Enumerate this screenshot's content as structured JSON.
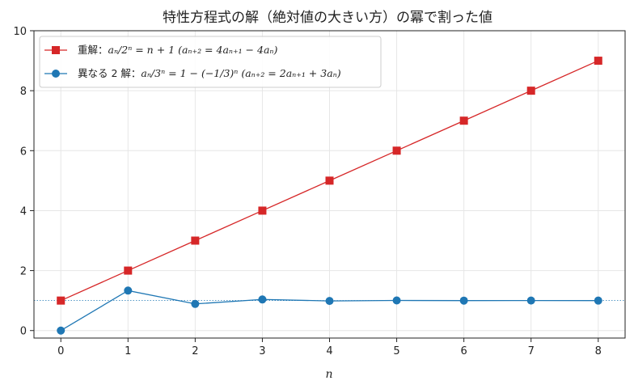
{
  "chart_data": {
    "type": "line",
    "title": "特性方程式の解（絶対値の大きい方）の冪で割った値",
    "xlabel": "n",
    "ylabel": "",
    "x": [
      0,
      1,
      2,
      3,
      4,
      5,
      6,
      7,
      8
    ],
    "xlim": [
      -0.4,
      8.4
    ],
    "ylim": [
      -0.25,
      10
    ],
    "xticks": [
      0,
      1,
      2,
      3,
      4,
      5,
      6,
      7,
      8
    ],
    "yticks": [
      0,
      2,
      4,
      6,
      8,
      10
    ],
    "grid": true,
    "legend_position": "top-left",
    "reference_line": {
      "y": 1,
      "style": "dotted",
      "color": "#1f77b4"
    },
    "series": [
      {
        "name": "重解：a_n/2^n = n+1 （a_{n+2} = 4a_{n+1} − 4a_n）",
        "legend_label": "重解：",
        "legend_math": "aₙ/2ⁿ = n + 1  (aₙ₊₂ = 4aₙ₊₁ − 4aₙ)",
        "color": "#d62728",
        "marker": "square",
        "values": [
          1,
          2,
          3,
          4,
          5,
          6,
          7,
          8,
          9
        ]
      },
      {
        "name": "異なる 2 解：a_n/3^n = 1 − (−1/3)^n （a_{n+2} = 2a_{n+1} + 3a_n）",
        "legend_label": "異なる 2 解：",
        "legend_math": "aₙ/3ⁿ = 1 − (−1/3)ⁿ  (aₙ₊₂ = 2aₙ₊₁ + 3aₙ)",
        "color": "#1f77b4",
        "marker": "circle",
        "values": [
          0,
          1.3333,
          0.8889,
          1.037,
          0.9877,
          1.0041,
          0.9986,
          1.0005,
          0.9998
        ]
      }
    ]
  }
}
